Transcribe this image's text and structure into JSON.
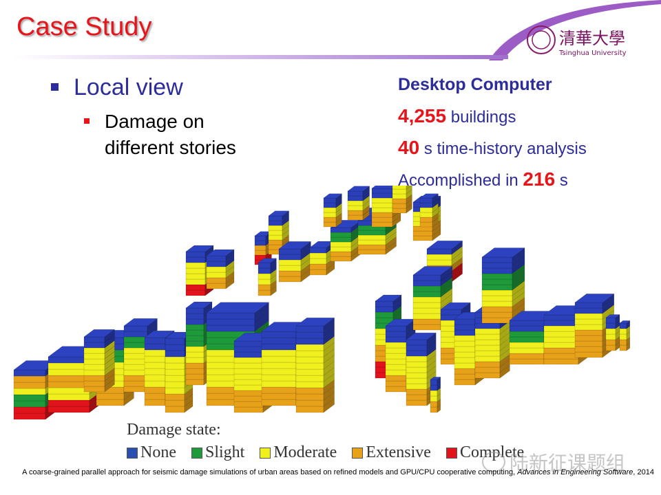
{
  "slide": {
    "title": "Case Study",
    "university": "Tsinghua University",
    "university_cn": "清華大學"
  },
  "bullets": {
    "level1": "Local view",
    "level2_line1": "Damage on",
    "level2_line2": "different stories"
  },
  "stats": {
    "header": "Desktop Computer",
    "buildings_num": "4,255",
    "buildings_label": "buildings",
    "time_num": "40",
    "time_label": "s time-history analysis",
    "accomplished_label": "Accomplished in",
    "accomplished_num": "216",
    "accomplished_unit": "s"
  },
  "legend": {
    "title": "Damage state:",
    "items": [
      {
        "label": "None",
        "color": "#2a4fb0"
      },
      {
        "label": "Slight",
        "color": "#1e9a3a"
      },
      {
        "label": "Moderate",
        "color": "#f0f01e"
      },
      {
        "label": "Extensive",
        "color": "#e8a21a"
      },
      {
        "label": "Complete",
        "color": "#e0141a"
      }
    ]
  },
  "watermark": "陆新征课题组",
  "caption": {
    "text": "A coarse-grained parallel approach for seismic damage simulations of urban areas based on refined models and GPU/CPU cooperative computing, ",
    "journal": "Advances in Engineering Software",
    "year": ", 2014"
  },
  "colors": {
    "title_red": "#e8141a",
    "text_blue": "#2c2c9c",
    "accent_purple": "#a070cc"
  }
}
